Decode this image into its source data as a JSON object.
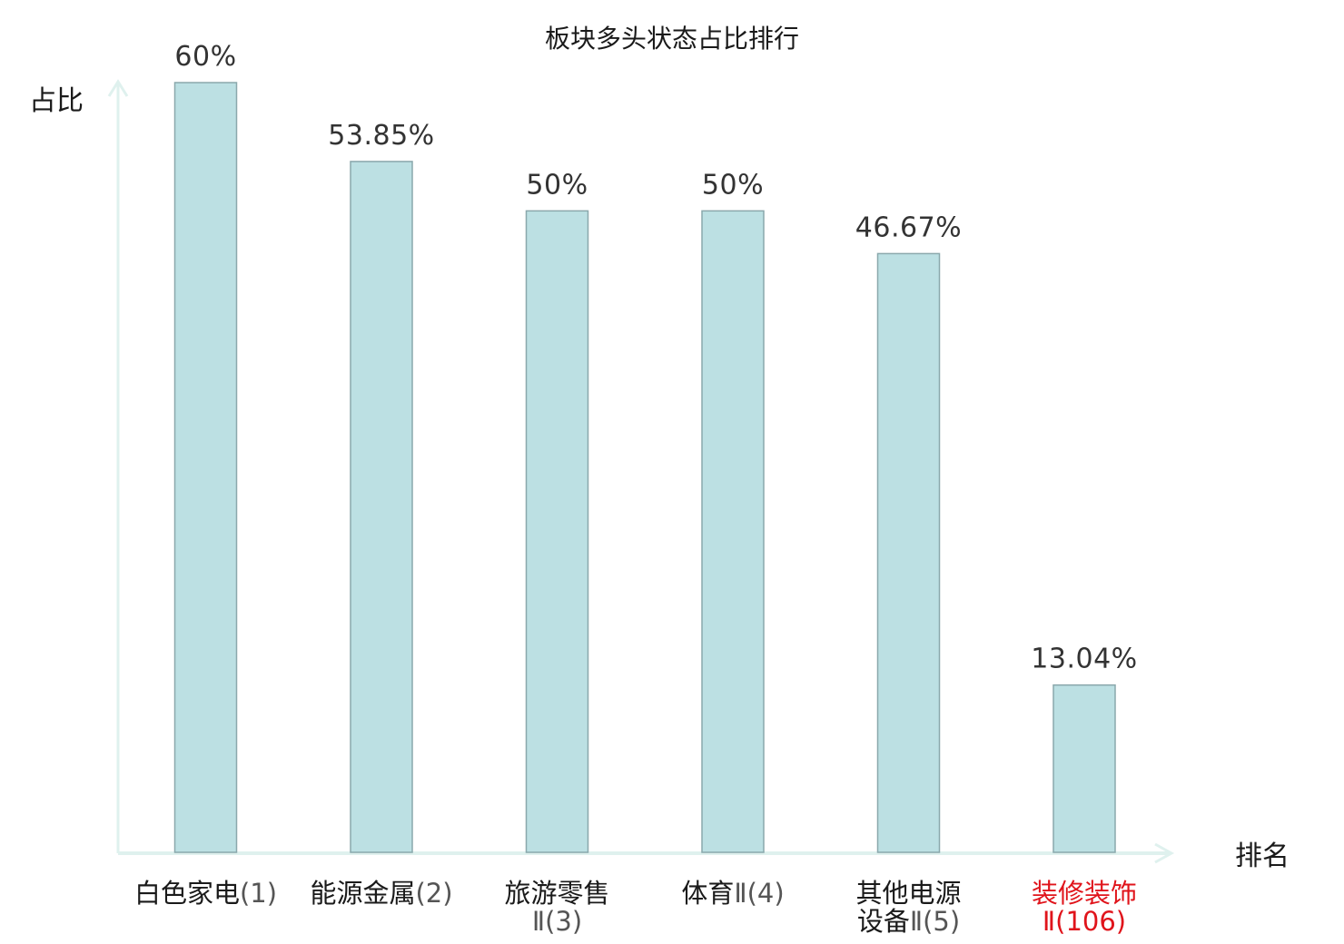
{
  "chart_data": {
    "type": "bar",
    "title": "板块多头状态占比排行",
    "xlabel": "排名",
    "ylabel": "占比",
    "ylim": [
      0,
      63
    ],
    "grid": false,
    "categories": [
      {
        "name_lines": [
          "白色家电"
        ],
        "rank_text": "(1)",
        "highlight": false
      },
      {
        "name_lines": [
          "能源金属"
        ],
        "rank_text": "(2)",
        "highlight": false
      },
      {
        "name_lines": [
          "旅游零售"
        ],
        "rank_text": "Ⅱ(3)",
        "rank_on_new_line": true,
        "highlight": false
      },
      {
        "name_lines": [
          "体育"
        ],
        "rank_text": "Ⅱ(4)",
        "highlight": false
      },
      {
        "name_lines": [
          "其他电源",
          "设备"
        ],
        "rank_text": "Ⅱ(5)",
        "highlight": false
      },
      {
        "name_lines": [
          "装修装饰"
        ],
        "rank_text": "Ⅱ(106)",
        "rank_on_new_line": true,
        "highlight": true
      }
    ],
    "values": [
      60,
      53.85,
      50,
      50,
      46.67,
      13.04
    ],
    "value_labels": [
      "60%",
      "53.85%",
      "50%",
      "50%",
      "46.67%",
      "13.04%"
    ]
  },
  "colors": {
    "bar_fill": "#bce0e3",
    "bar_stroke": "#8aa8ac",
    "axis": "#dff1ee",
    "text": "#1a1a1a",
    "highlight": "#e0141b"
  }
}
